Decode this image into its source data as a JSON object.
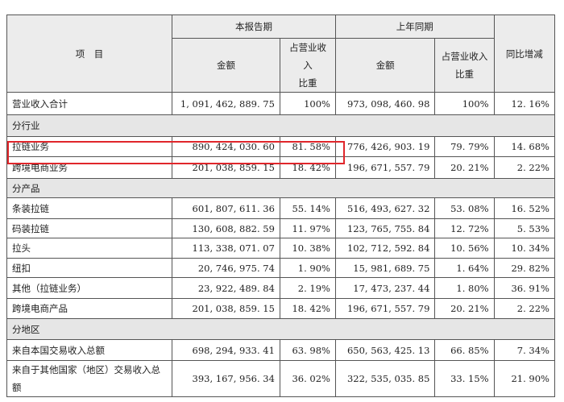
{
  "header": {
    "item": "项　目",
    "current_period": "本报告期",
    "prior_period": "上年同期",
    "yoy": "同比增减",
    "amount": "金额",
    "share_line1": "占营业收入",
    "share_line2": "比重"
  },
  "total_row": {
    "label": "营业收入合计",
    "cur_amount": "1, 091, 462, 889. 75",
    "cur_pct": "100%",
    "prev_amount": "973, 098, 460. 98",
    "prev_pct": "100%",
    "yoy": "12. 16%"
  },
  "sections": [
    {
      "title": "分行业",
      "rows": [
        {
          "label": "拉链业务",
          "cur_amount": "890, 424, 030. 60",
          "cur_pct": "81. 58%",
          "prev_amount": "776, 426, 903. 19",
          "prev_pct": "79. 79%",
          "yoy": "14. 68%"
        },
        {
          "label": "跨境电商业务",
          "cur_amount": "201, 038, 859. 15",
          "cur_pct": "18. 42%",
          "prev_amount": "196, 671, 557. 79",
          "prev_pct": "20. 21%",
          "yoy": "2. 22%"
        }
      ]
    },
    {
      "title": "分产品",
      "rows": [
        {
          "label": "条装拉链",
          "cur_amount": "601, 807, 611. 36",
          "cur_pct": "55. 14%",
          "prev_amount": "516, 493, 627. 32",
          "prev_pct": "53. 08%",
          "yoy": "16. 52%"
        },
        {
          "label": "码装拉链",
          "cur_amount": "130, 608, 882. 59",
          "cur_pct": "11. 97%",
          "prev_amount": "123, 765, 755. 84",
          "prev_pct": "12. 72%",
          "yoy": "5. 53%"
        },
        {
          "label": "拉头",
          "cur_amount": "113, 338, 071. 07",
          "cur_pct": "10. 38%",
          "prev_amount": "102, 712, 592. 84",
          "prev_pct": "10. 56%",
          "yoy": "10. 34%"
        },
        {
          "label": "纽扣",
          "cur_amount": "20, 746, 975. 74",
          "cur_pct": "1. 90%",
          "prev_amount": "15, 981, 689. 75",
          "prev_pct": "1. 64%",
          "yoy": "29. 82%"
        },
        {
          "label": "其他（拉链业务）",
          "cur_amount": "23, 922, 489. 84",
          "cur_pct": "2. 19%",
          "prev_amount": "17, 473, 237. 44",
          "prev_pct": "1. 80%",
          "yoy": "36. 91%"
        },
        {
          "label": "跨境电商产品",
          "cur_amount": "201, 038, 859. 15",
          "cur_pct": "18. 42%",
          "prev_amount": "196, 671, 557. 79",
          "prev_pct": "20. 21%",
          "yoy": "2. 22%"
        }
      ]
    },
    {
      "title": "分地区",
      "rows": [
        {
          "label": "来自本国交易收入总额",
          "cur_amount": "698, 294, 933. 41",
          "cur_pct": "63. 98%",
          "prev_amount": "650, 563, 425. 13",
          "prev_pct": "66. 85%",
          "yoy": "7. 34%"
        },
        {
          "label": "来自于其他国家（地区）交易收入总额",
          "cur_amount": "393, 167, 956. 34",
          "cur_pct": "36. 02%",
          "prev_amount": "322, 535, 035. 85",
          "prev_pct": "33. 15%",
          "yoy": "21. 90%"
        }
      ]
    }
  ],
  "highlight": {
    "color": "#e0262b"
  }
}
